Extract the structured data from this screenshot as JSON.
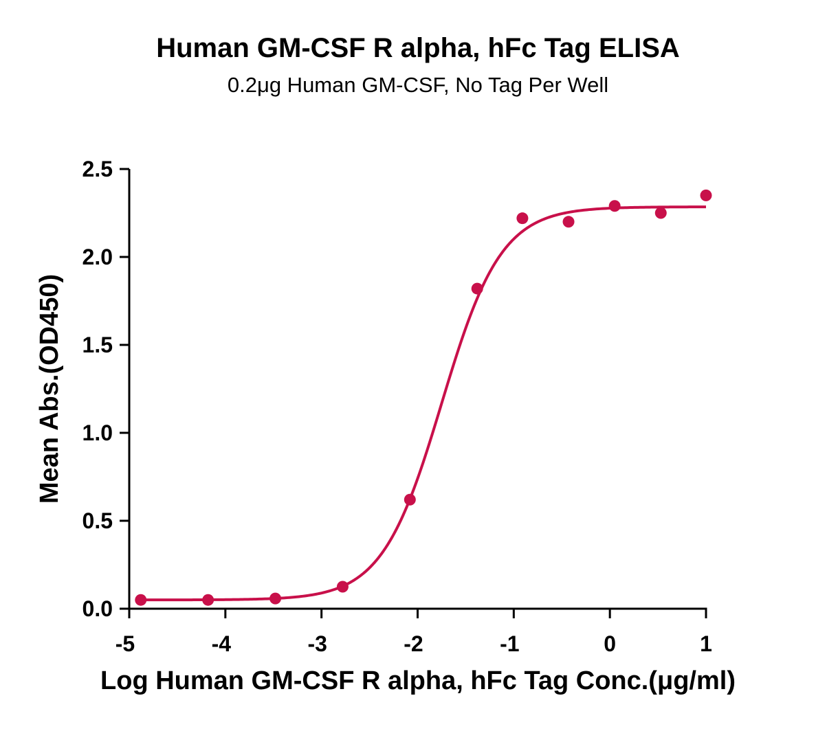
{
  "chart_data": {
    "type": "scatter",
    "title": "Human GM-CSF R alpha, hFc Tag ELISA",
    "subtitle": "0.2μg Human GM-CSF, No Tag Per Well",
    "xlabel": "Log Human GM-CSF R alpha, hFc Tag Conc.(μg/ml)",
    "ylabel": "Mean Abs.(OD450)",
    "xlim": [
      -5,
      1
    ],
    "ylim": [
      0,
      2.5
    ],
    "x_ticks": [
      "-5",
      "-4",
      "-3",
      "-2",
      "-1",
      "0",
      "1"
    ],
    "y_ticks": [
      "0.0",
      "0.5",
      "1.0",
      "1.5",
      "2.0",
      "2.5"
    ],
    "grid": false,
    "color": "#C8104A",
    "series": [
      {
        "x": [
          -4.88,
          -4.18,
          -3.48,
          -2.78,
          -2.08,
          -1.38,
          -0.91,
          -0.43,
          0.05,
          0.53,
          1.0
        ],
        "y": [
          0.05,
          0.05,
          0.058,
          0.125,
          0.62,
          1.82,
          2.22,
          2.2,
          2.29,
          2.25,
          2.35
        ]
      }
    ],
    "fit": {
      "model": "4PL",
      "bottom": 0.05,
      "top": 2.285,
      "log_ec50": -1.75,
      "hill_slope": 1.4
    }
  }
}
